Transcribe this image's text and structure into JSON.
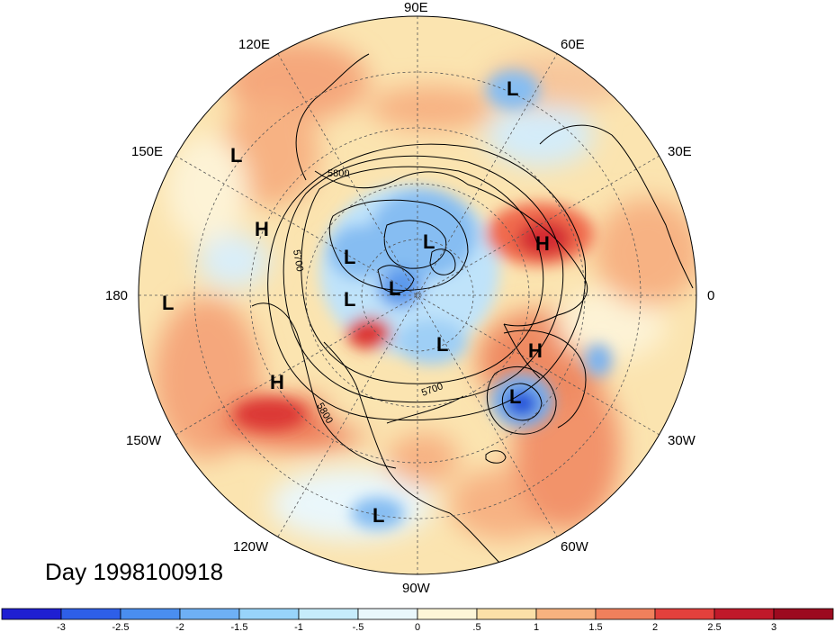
{
  "lon_labels": {
    "n90e": "90E",
    "n60e": "60E",
    "n30e": "30E",
    "n0": "0",
    "n30w": "30W",
    "n60w": "60W",
    "n90w": "90W",
    "n120w": "120W",
    "n150w": "150W",
    "n180": "180",
    "n150e": "150E",
    "n120e": "120E"
  },
  "pressure_centers": {
    "l1": "L",
    "l2": "L",
    "l3": "L",
    "l4": "L",
    "l5": "L",
    "l6": "L",
    "l7": "L",
    "l8": "L",
    "l9": "L",
    "l10": "L",
    "h1": "H",
    "h2": "H",
    "h3": "H",
    "h4": "H"
  },
  "contour_labels": {
    "c1": "5800",
    "c2": "5700",
    "c3": "5800",
    "c4": "5700"
  },
  "day_label": "Day 1998100918",
  "colorbar": {
    "ticks": [
      "-3",
      "-2.5",
      "-2",
      "-1.5",
      "-1",
      "-.5",
      "0",
      ".5",
      "1",
      "1.5",
      "2",
      "2.5",
      "3"
    ],
    "colors": [
      "#1f1fd2",
      "#2e5fe8",
      "#4a8ef0",
      "#6eb0f5",
      "#98d4fa",
      "#c6ecfb",
      "#e9f7fb",
      "#fdf6d8",
      "#fbe0a8",
      "#f7b27f",
      "#f0805c",
      "#e3403c",
      "#c0192a",
      "#9c0a1f"
    ]
  }
}
